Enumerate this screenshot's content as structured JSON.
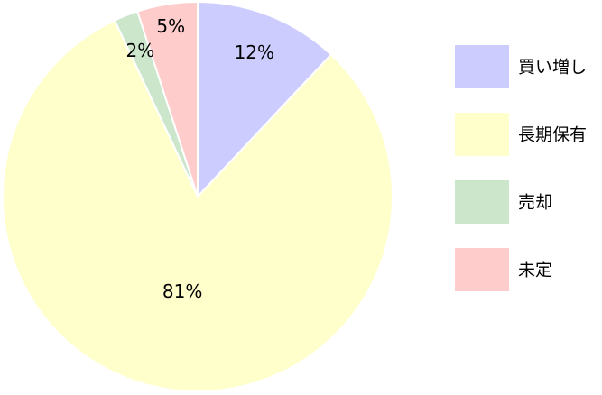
{
  "chart_data": {
    "type": "pie",
    "categories": [
      "買い増し",
      "長期保有",
      "売却",
      "未定"
    ],
    "values": [
      12,
      81,
      2,
      5
    ],
    "value_labels": [
      "12%",
      "81%",
      "2%",
      "5%"
    ],
    "colors": [
      "#ccccff",
      "#ffffcc",
      "#cce6cc",
      "#ffcccc"
    ],
    "legend": "right"
  }
}
